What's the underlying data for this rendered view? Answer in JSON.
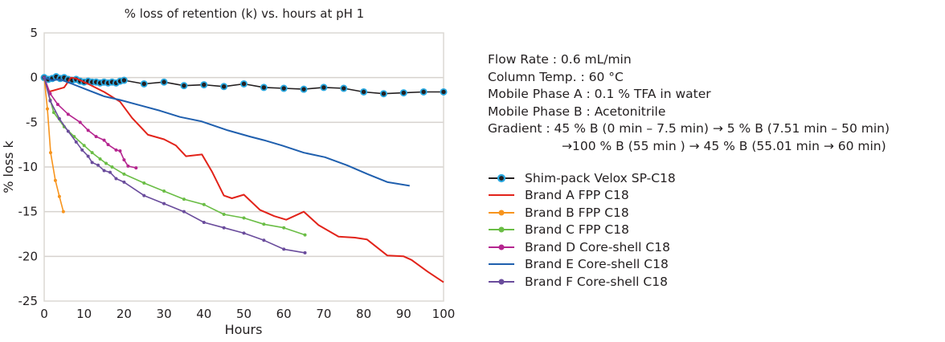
{
  "conditions": [
    "Flow Rate : 0.6 mL/min",
    "Column Temp. : 60 °C",
    "Mobile Phase A : 0.1 % TFA in water",
    "Mobile Phase B : Acetonitrile",
    "Gradient : 45 % B (0 min – 7.5 min) → 5 % B (7.51 min – 50 min)",
    "→100 % B (55 min ) → 45 % B (55.01 min → 60 min)"
  ],
  "chart_data": {
    "type": "line",
    "title": "% loss of retention (k) vs. hours at pH 1",
    "xlabel": "Hours",
    "ylabel": "% loss k",
    "xlim": [
      0,
      100
    ],
    "ylim": [
      -25,
      5
    ],
    "xticks": [
      0,
      10,
      20,
      30,
      40,
      50,
      60,
      70,
      80,
      90,
      100
    ],
    "yticks": [
      5,
      0,
      -5,
      -10,
      -15,
      -20,
      -25
    ],
    "grid": "horizontal",
    "legend_position": "right",
    "series": [
      {
        "name": "Shim-pack Velox SP-C18",
        "color": "#231f20",
        "marker_color": "#29a8e0",
        "marker": "circle",
        "x": [
          0,
          1,
          2,
          3,
          4,
          5,
          6,
          7,
          8,
          9,
          10,
          11,
          12,
          13,
          14,
          15,
          16,
          17,
          18,
          19,
          20,
          25,
          30,
          35,
          40,
          45,
          50,
          55,
          60,
          65,
          70,
          75,
          80,
          85,
          90,
          95,
          100
        ],
        "y": [
          0,
          -0.2,
          -0.1,
          0.1,
          -0.1,
          0,
          -0.2,
          -0.3,
          -0.2,
          -0.4,
          -0.5,
          -0.4,
          -0.5,
          -0.5,
          -0.6,
          -0.5,
          -0.6,
          -0.5,
          -0.6,
          -0.4,
          -0.3,
          -0.7,
          -0.5,
          -0.9,
          -0.8,
          -1.0,
          -0.7,
          -1.1,
          -1.2,
          -1.3,
          -1.1,
          -1.2,
          -1.6,
          -1.8,
          -1.7,
          -1.6,
          -1.6
        ]
      },
      {
        "name": "Brand A FPP C18",
        "color": "#e2231a",
        "marker": "none",
        "x": [
          0,
          1,
          2.6,
          5,
          6.7,
          8,
          11,
          15,
          19,
          22,
          26,
          30,
          33,
          35.5,
          39.5,
          42,
          45,
          47,
          50,
          54,
          57.6,
          60.6,
          65,
          68.7,
          73.7,
          77.8,
          80.8,
          85.9,
          90,
          92,
          96,
          100
        ],
        "y": [
          0,
          -1.6,
          -1.4,
          -1.1,
          0,
          -0.1,
          -0.7,
          -1.6,
          -2.7,
          -4.5,
          -6.4,
          -6.9,
          -7.6,
          -8.8,
          -8.6,
          -10.5,
          -13.2,
          -13.5,
          -13.1,
          -14.8,
          -15.5,
          -15.9,
          -15.0,
          -16.5,
          -17.8,
          -17.9,
          -18.1,
          -19.9,
          -20.0,
          -20.4,
          -21.7,
          -22.9
        ]
      },
      {
        "name": "Brand B FPP C18",
        "color": "#f7941d",
        "marker": "circle",
        "x": [
          0,
          0.8,
          1.6,
          2.8,
          3.8,
          4.8
        ],
        "y": [
          0,
          -3.5,
          -8.4,
          -11.5,
          -13.3,
          -15.0
        ]
      },
      {
        "name": "Brand C FPP C18",
        "color": "#6abd45",
        "marker": "circle",
        "x": [
          0,
          1.5,
          2.4,
          5,
          7.5,
          10,
          12,
          14,
          15.5,
          17,
          20,
          25,
          30,
          35,
          40,
          45,
          50,
          55,
          60,
          65.3
        ],
        "y": [
          0,
          -2.5,
          -3.9,
          -5.5,
          -6.6,
          -7.6,
          -8.4,
          -9.1,
          -9.6,
          -10.0,
          -10.8,
          -11.8,
          -12.7,
          -13.6,
          -14.2,
          -15.3,
          -15.7,
          -16.4,
          -16.8,
          -17.6
        ]
      },
      {
        "name": "Brand D Core-shell C18",
        "color": "#b5258f",
        "marker": "circle",
        "x": [
          0,
          1.5,
          3.4,
          6,
          9,
          11,
          13,
          15,
          16,
          18,
          19,
          20,
          21,
          23
        ],
        "y": [
          0,
          -1.8,
          -3.0,
          -4.1,
          -5.0,
          -5.9,
          -6.6,
          -7.0,
          -7.5,
          -8.1,
          -8.2,
          -9.2,
          -9.9,
          -10.1
        ]
      },
      {
        "name": "Brand E Core-shell C18",
        "color": "#1f5fae",
        "marker": "none",
        "x": [
          0,
          2,
          4,
          7,
          11,
          15,
          19,
          24,
          29,
          34,
          39.4,
          46,
          51.5,
          55,
          59.6,
          65,
          70.3,
          75.8,
          81,
          86,
          91.5
        ],
        "y": [
          0,
          -0.3,
          -0.2,
          -0.7,
          -1.4,
          -2.1,
          -2.5,
          -3.1,
          -3.7,
          -4.4,
          -4.9,
          -5.9,
          -6.6,
          -7.0,
          -7.6,
          -8.4,
          -8.9,
          -9.8,
          -10.8,
          -11.7,
          -12.1
        ]
      },
      {
        "name": "Brand F Core-shell C18",
        "color": "#6a4c9c",
        "marker": "circle",
        "x": [
          0,
          1.5,
          3.8,
          6,
          8,
          9.5,
          11,
          12,
          13.5,
          15,
          16.5,
          18,
          20,
          25,
          30,
          35,
          40,
          45,
          50,
          55,
          60,
          65.3
        ],
        "y": [
          0,
          -2.6,
          -4.6,
          -6.0,
          -7.2,
          -8.1,
          -8.8,
          -9.5,
          -9.8,
          -10.4,
          -10.6,
          -11.3,
          -11.7,
          -13.2,
          -14.1,
          -15.0,
          -16.2,
          -16.8,
          -17.4,
          -18.2,
          -19.2,
          -19.6
        ]
      }
    ]
  }
}
